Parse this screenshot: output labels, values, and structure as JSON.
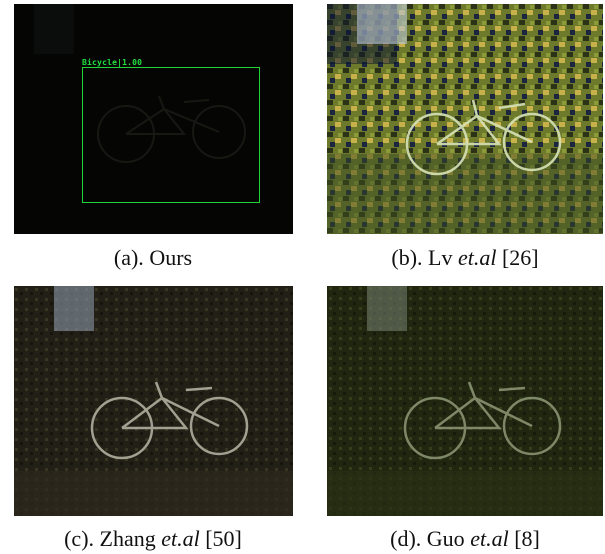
{
  "panels": [
    {
      "id": "a",
      "caption_prefix": "(a). ",
      "caption_name": "Ours",
      "caption_etal": "",
      "caption_ref": "",
      "detection_label": "Bicycle|1.00",
      "box_color": "#22d33a"
    },
    {
      "id": "b",
      "caption_prefix": "(b). Lv ",
      "caption_etal": "et.al",
      "caption_ref": " [26]"
    },
    {
      "id": "c",
      "caption_prefix": "(c). Zhang ",
      "caption_etal": "et.al",
      "caption_ref": "  [50]"
    },
    {
      "id": "d",
      "caption_prefix": "(d). Guo ",
      "caption_etal": "et.al",
      "caption_ref": "  [8]"
    }
  ],
  "colors": {
    "panel_a_bg": "#050604",
    "panel_b_bg": "#6b6a2a",
    "panel_c_bg": "#1f1c14",
    "panel_d_bg": "#1f2410"
  }
}
